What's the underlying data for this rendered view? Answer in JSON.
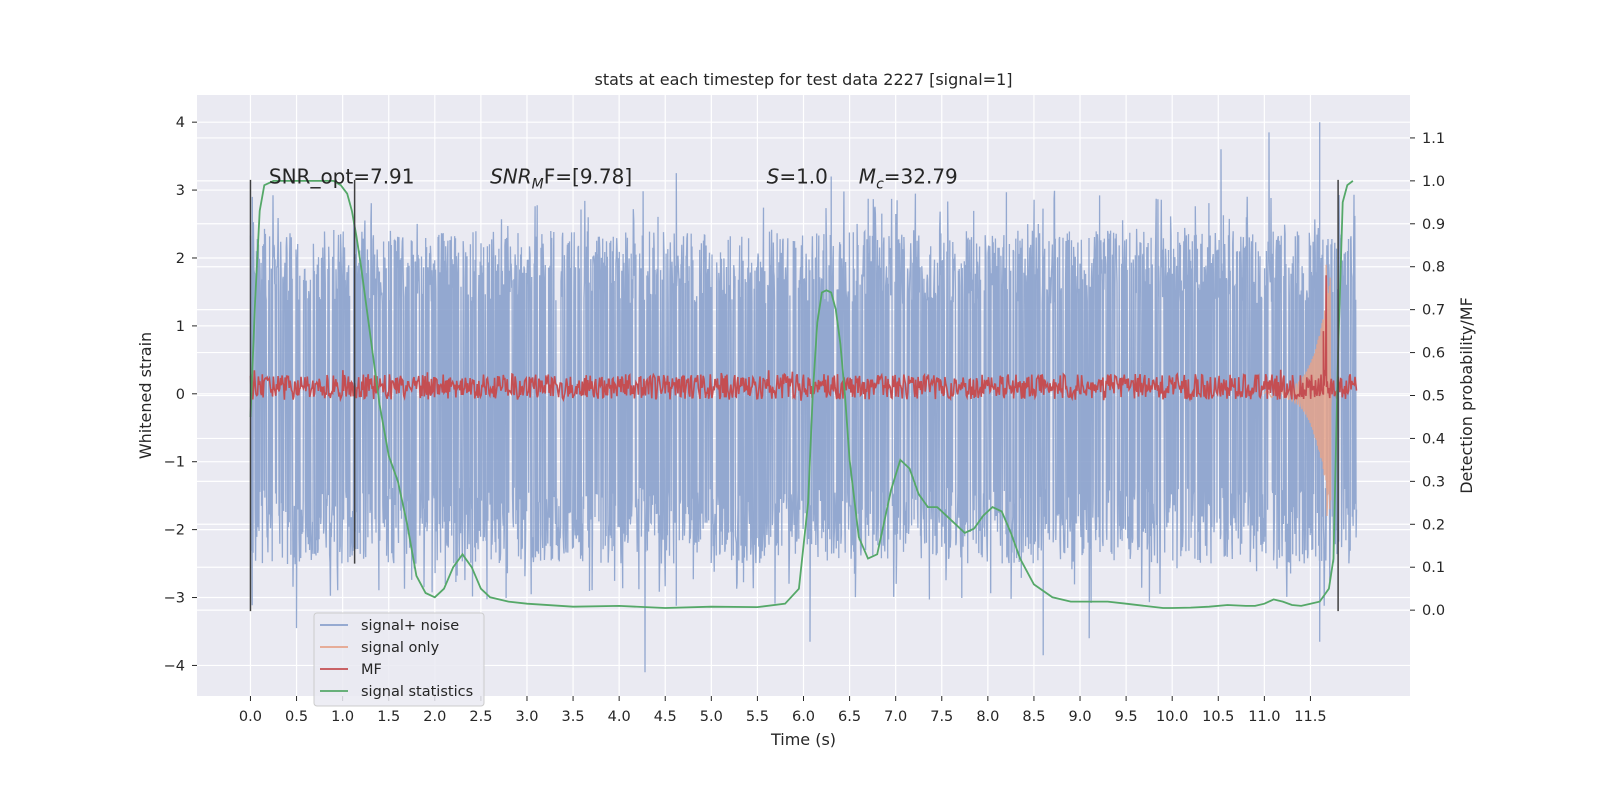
{
  "chart_data": {
    "type": "line",
    "title": "stats at each timestep for test data 2227 [signal=1]",
    "xlabel": "Time (s)",
    "ylabel": "Whitened strain",
    "y2label": "Detection probability/MF",
    "xlim": [
      -0.58,
      12.58
    ],
    "ylim": [
      -4.45,
      4.4
    ],
    "y2lim": [
      -0.2,
      1.2
    ],
    "xticks": [
      "0.0",
      "0.5",
      "1.0",
      "1.5",
      "2.0",
      "2.5",
      "3.0",
      "3.5",
      "4.0",
      "4.5",
      "5.0",
      "5.5",
      "6.0",
      "6.5",
      "7.0",
      "7.5",
      "8.0",
      "8.5",
      "9.0",
      "9.5",
      "10.0",
      "10.5",
      "11.0",
      "11.5"
    ],
    "yticks": [
      "4",
      "3",
      "2",
      "1",
      "0",
      "−1",
      "−2",
      "−3",
      "−4"
    ],
    "y2ticks": [
      "0.0",
      "0.1",
      "0.2",
      "0.3",
      "0.4",
      "0.5",
      "0.6",
      "0.7",
      "0.8",
      "0.9",
      "1.0",
      "1.1"
    ],
    "grid": true,
    "legend_position": "lower-left",
    "annotations": [
      {
        "text": "SNR_opt=7.91",
        "x": 0.2,
        "y": 3.1
      },
      {
        "main": "SNR",
        "sub": "M",
        "rest": "F=[9.78]",
        "x": 2.6,
        "y": 3.1
      },
      {
        "main": "S",
        "sub": "",
        "rest": "=1.0",
        "x": 5.6,
        "y": 3.1
      },
      {
        "main": "M",
        "sub": "c",
        "rest": "=32.79",
        "x": 6.6,
        "y": 3.1
      }
    ],
    "vlines": [
      {
        "x": 0.0,
        "ymin": -3.2,
        "ymax": 3.15
      },
      {
        "x": 1.13,
        "ymin": -2.5,
        "ymax": 3.15
      },
      {
        "x": 11.8,
        "ymin": -3.2,
        "ymax": 3.15
      }
    ],
    "series": [
      {
        "name": "signal+ noise",
        "color": "#8aa1cc",
        "kind": "noise",
        "x_range": [
          0.0,
          12.0
        ],
        "envelope": [
          -2.5,
          2.4
        ],
        "peaks_up": [
          [
            0.02,
            2.9
          ],
          [
            4.62,
            3.25
          ],
          [
            6.3,
            3.2
          ],
          [
            10.53,
            3.6
          ],
          [
            11.05,
            3.85
          ],
          [
            11.6,
            4.0
          ]
        ],
        "peaks_down": [
          [
            0.5,
            -3.45
          ],
          [
            4.28,
            -4.1
          ],
          [
            6.07,
            -3.65
          ],
          [
            8.6,
            -3.85
          ],
          [
            9.1,
            -3.6
          ],
          [
            11.6,
            -3.65
          ]
        ]
      },
      {
        "name": "signal only",
        "color": "#e5a38b",
        "kind": "chirp",
        "x_range": [
          11.0,
          11.72
        ],
        "peak": [
          11.67,
          1.9
        ],
        "trough": [
          11.68,
          -1.8
        ]
      },
      {
        "name": "MF",
        "color": "#c44e52",
        "kind": "mf",
        "axis": "y2",
        "x_range": [
          0.0,
          12.0
        ],
        "base": 0.52,
        "amplitude": 0.03,
        "spikes": [
          [
            11.67,
            0.78
          ],
          [
            11.64,
            0.65
          ]
        ]
      },
      {
        "name": "signal statistics",
        "color": "#55a868",
        "axis": "y2",
        "x": [
          0.0,
          0.05,
          0.1,
          0.15,
          0.25,
          0.4,
          0.6,
          0.8,
          0.9,
          0.98,
          1.05,
          1.1,
          1.15,
          1.2,
          1.25,
          1.3,
          1.35,
          1.4,
          1.45,
          1.5,
          1.6,
          1.7,
          1.8,
          1.9,
          2.0,
          2.1,
          2.2,
          2.3,
          2.4,
          2.5,
          2.6,
          2.8,
          3.0,
          3.5,
          4.0,
          4.5,
          5.0,
          5.5,
          5.8,
          5.95,
          6.05,
          6.1,
          6.15,
          6.2,
          6.25,
          6.3,
          6.35,
          6.4,
          6.45,
          6.5,
          6.6,
          6.7,
          6.8,
          6.85,
          6.95,
          7.05,
          7.15,
          7.25,
          7.35,
          7.45,
          7.55,
          7.65,
          7.75,
          7.85,
          7.95,
          8.05,
          8.15,
          8.25,
          8.35,
          8.5,
          8.7,
          8.9,
          9.1,
          9.3,
          9.5,
          9.7,
          9.9,
          10.0,
          10.2,
          10.4,
          10.6,
          10.8,
          10.9,
          11.0,
          11.1,
          11.2,
          11.3,
          11.4,
          11.5,
          11.6,
          11.7,
          11.75,
          11.8,
          11.85,
          11.9,
          11.96
        ],
        "values": [
          0.45,
          0.72,
          0.93,
          0.99,
          1.0,
          1.0,
          1.0,
          1.0,
          1.0,
          0.99,
          0.97,
          0.93,
          0.87,
          0.8,
          0.72,
          0.64,
          0.56,
          0.48,
          0.42,
          0.36,
          0.3,
          0.2,
          0.08,
          0.04,
          0.03,
          0.05,
          0.1,
          0.13,
          0.1,
          0.05,
          0.03,
          0.02,
          0.015,
          0.008,
          0.01,
          0.005,
          0.008,
          0.007,
          0.015,
          0.05,
          0.25,
          0.5,
          0.67,
          0.74,
          0.745,
          0.74,
          0.7,
          0.62,
          0.5,
          0.35,
          0.17,
          0.12,
          0.13,
          0.18,
          0.28,
          0.35,
          0.33,
          0.27,
          0.24,
          0.24,
          0.22,
          0.2,
          0.18,
          0.19,
          0.22,
          0.24,
          0.23,
          0.18,
          0.12,
          0.06,
          0.03,
          0.02,
          0.02,
          0.02,
          0.015,
          0.01,
          0.005,
          0.005,
          0.006,
          0.008,
          0.012,
          0.01,
          0.01,
          0.015,
          0.025,
          0.02,
          0.012,
          0.01,
          0.015,
          0.02,
          0.05,
          0.12,
          0.6,
          0.95,
          0.99,
          1.0
        ]
      }
    ]
  }
}
